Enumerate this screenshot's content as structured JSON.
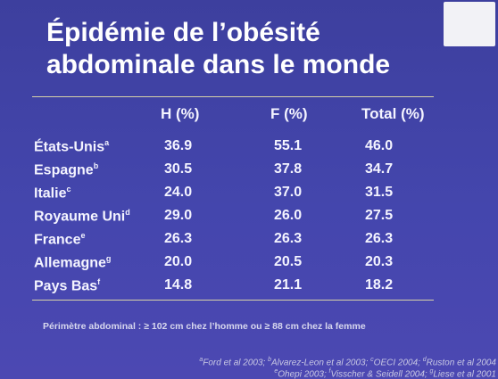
{
  "title": [
    "Épidémie de l’obésité",
    "abdominale dans le monde"
  ],
  "table": {
    "header": [
      "H (%)",
      "F (%)",
      "Total (%)"
    ],
    "rows": [
      {
        "country": "États-Unis",
        "sup": "a",
        "cells": [
          "36.9",
          "55.1",
          "46.0"
        ]
      },
      {
        "country": "Espagne",
        "sup": "b",
        "cells": [
          "30.5",
          "37.8",
          "34.7"
        ]
      },
      {
        "country": "Italie",
        "sup": "c",
        "cells": [
          "24.0",
          "37.0",
          "31.5"
        ]
      },
      {
        "country": "Royaume Uni",
        "sup": "d",
        "cells": [
          "29.0",
          "26.0",
          "27.5"
        ]
      },
      {
        "country": "France",
        "sup": "e",
        "cells": [
          "26.3",
          "26.3",
          "26.3"
        ]
      },
      {
        "country": "Allemagne",
        "sup": "g",
        "cells": [
          "20.0",
          "20.5",
          "20.3"
        ]
      },
      {
        "country": "Pays Bas",
        "sup": "f",
        "cells": [
          "14.8",
          "21.1",
          "18.2"
        ]
      }
    ]
  },
  "footnote": "Périmètre abdominal : ≥ 102 cm chez l’homme ou ≥ 88 cm chez la femme",
  "references": [
    [
      {
        "sup": "a",
        "text": "Ford et al 2003; "
      },
      {
        "sup": "b",
        "text": "Alvarez-Leon et al 2003; "
      },
      {
        "sup": "c",
        "text": "OECI 2004; "
      },
      {
        "sup": "d",
        "text": "Ruston et al 2004"
      }
    ],
    [
      {
        "sup": "e",
        "text": "Ohepi 2003; "
      },
      {
        "sup": "f",
        "text": "Visscher & Seidell 2004; "
      },
      {
        "sup": "g",
        "text": "Liese et al 2001"
      }
    ]
  ]
}
